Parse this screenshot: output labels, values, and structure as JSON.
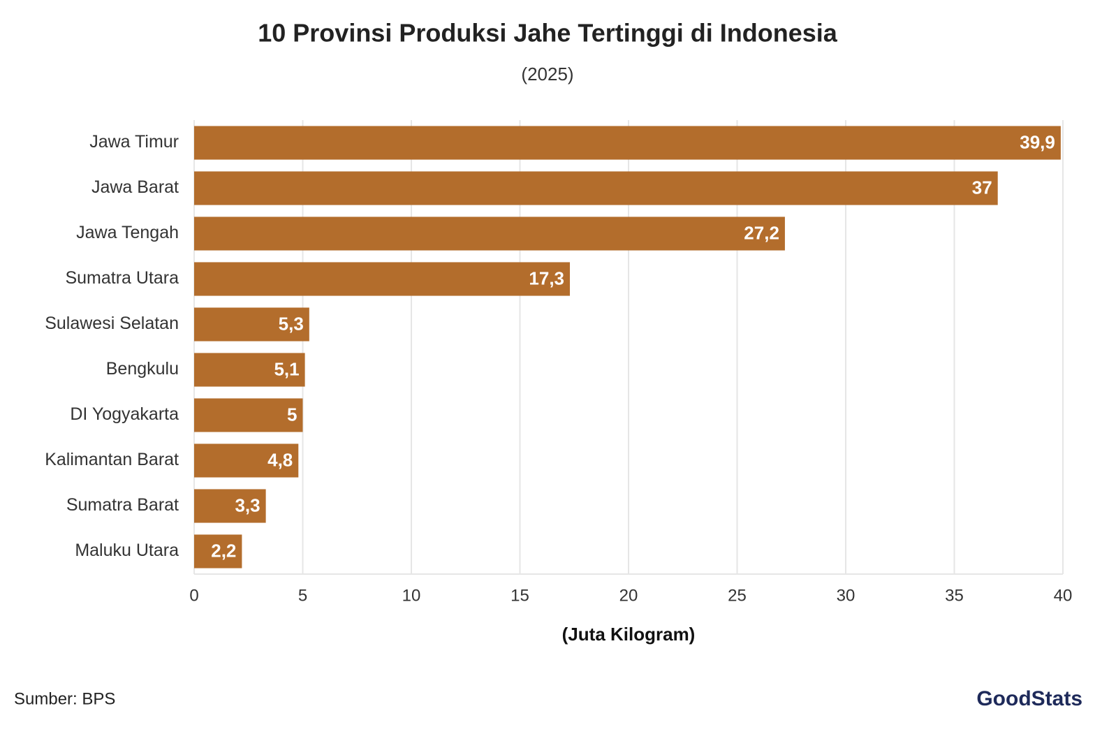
{
  "chart_data": {
    "type": "bar",
    "orientation": "horizontal",
    "title": "10 Provinsi Produksi Jahe Tertinggi di Indonesia",
    "subtitle": "(2025)",
    "categories": [
      "Jawa Timur",
      "Jawa Barat",
      "Jawa Tengah",
      "Sumatra Utara",
      "Sulawesi Selatan",
      "Bengkulu",
      "DI Yogyakarta",
      "Kalimantan Barat",
      "Sumatra Barat",
      "Maluku Utara"
    ],
    "values": [
      39.9,
      37,
      27.2,
      17.3,
      5.3,
      5.1,
      5,
      4.8,
      3.3,
      2.2
    ],
    "value_labels": [
      "39,9",
      "37",
      "27,2",
      "17,3",
      "5,3",
      "5,1",
      "5",
      "4,8",
      "3,3",
      "2,2"
    ],
    "color": "#b36d2c",
    "xlim": [
      0,
      40
    ],
    "xticks": [
      0,
      5,
      10,
      15,
      20,
      25,
      30,
      35,
      40
    ],
    "x_label": "(Juta Kilogram)",
    "grid": true,
    "source": "Sumber: BPS",
    "logo": "GoodStats"
  }
}
